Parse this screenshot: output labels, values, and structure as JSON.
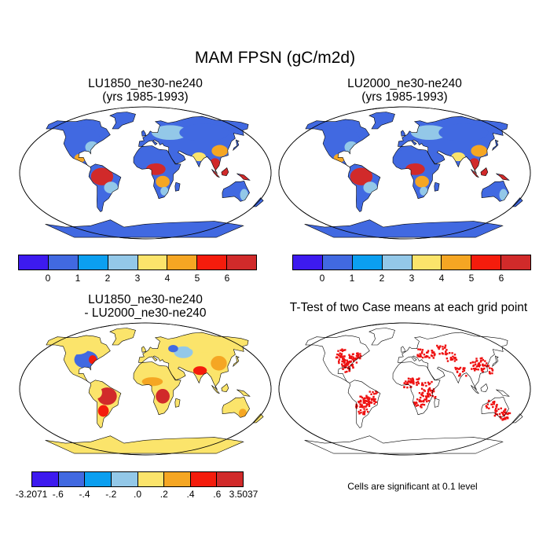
{
  "title": "MAM FPSN (gC/m2d)",
  "panels": {
    "p1": {
      "line1": "LU1850_ne30-ne240",
      "line2": "(yrs 1985-1993)"
    },
    "p2": {
      "line1": "LU2000_ne30-ne240",
      "line2": "(yrs 1985-1993)"
    },
    "p3": {
      "line1": "LU1850_ne30-ne240",
      "line2": "- LU2000_ne30-ne240"
    },
    "p4": {
      "line1": "T-Test of two Case means at each grid point"
    }
  },
  "note": "Cells are significant at 0.1 level",
  "colorbars": {
    "abs": {
      "colors": [
        "#3d1aef",
        "#4169e1",
        "#0b9ff0",
        "#93c8e8",
        "#fbe46b",
        "#f5a623",
        "#f41c0c",
        "#d12a2a"
      ],
      "labels": [
        "0",
        "1",
        "2",
        "3",
        "4",
        "5",
        "6"
      ]
    },
    "diff": {
      "colors": [
        "#3d1aef",
        "#4169e1",
        "#0b9ff0",
        "#93c8e8",
        "#fbe46b",
        "#f5a623",
        "#f41c0c",
        "#d12a2a"
      ],
      "labels": [
        "-3.2071",
        "-.6",
        "-.4",
        "-.2",
        ".0",
        ".2",
        ".4",
        ".6",
        "3.5037"
      ]
    }
  },
  "map_colors": {
    "ocean": "#ffffff",
    "coast": "#000000",
    "low": "#4169e1",
    "mid": "#93c8e8",
    "high": "#d12a2a",
    "yellow": "#fbe46b",
    "orange": "#f5a623",
    "red": "#f41c0c",
    "sig": "#ee1111"
  }
}
